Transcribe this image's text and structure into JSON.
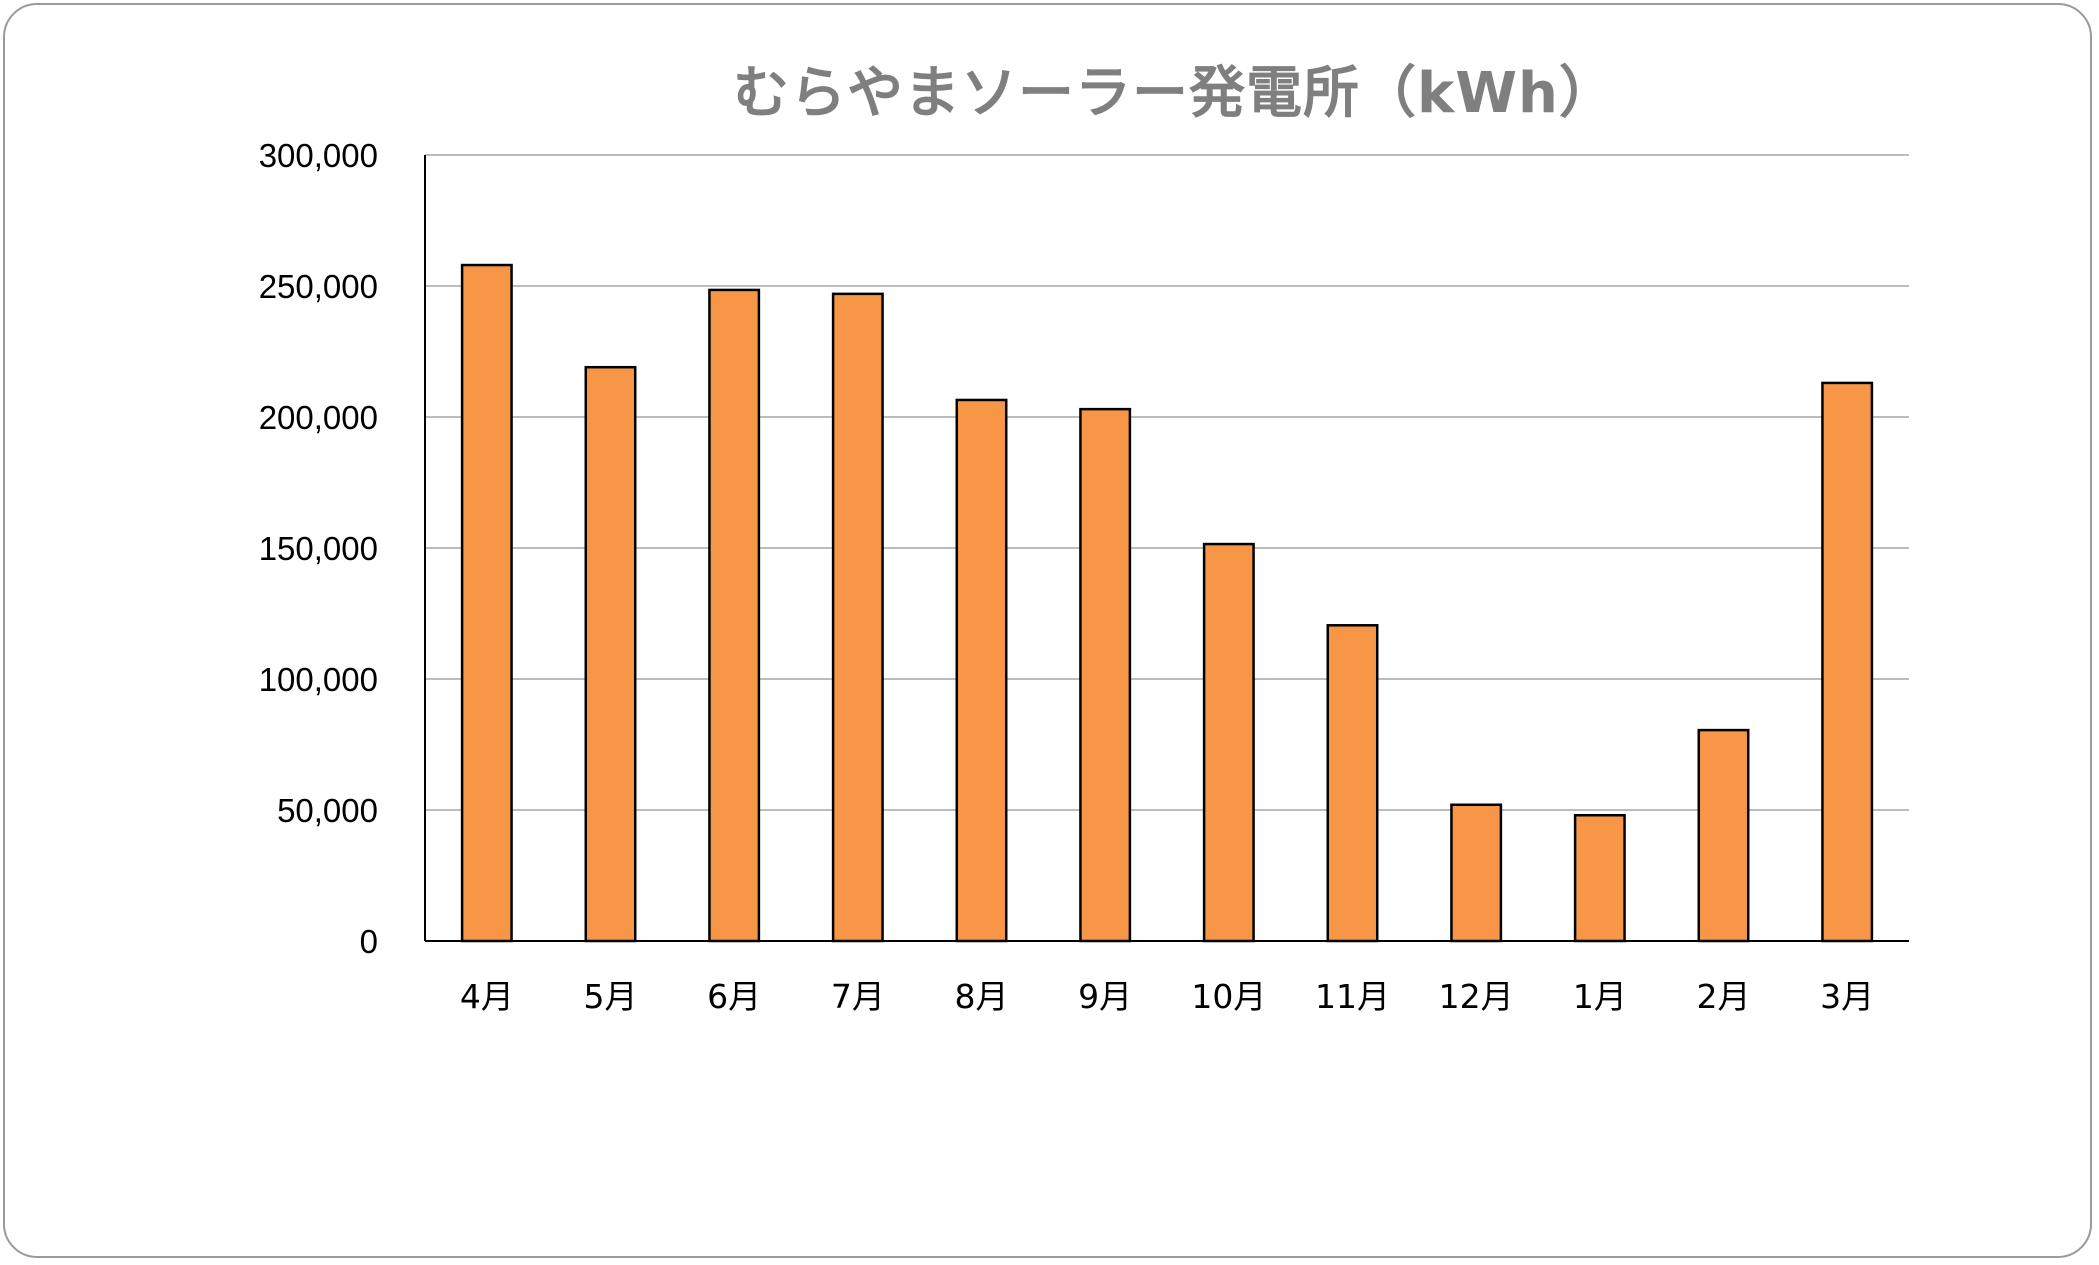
{
  "chart_data": {
    "type": "bar",
    "title": "むらやまソーラー発電所（kWh）",
    "xlabel": "",
    "ylabel": "",
    "categories": [
      "4月",
      "5月",
      "6月",
      "7月",
      "8月",
      "9月",
      "10月",
      "11月",
      "12月",
      "1月",
      "2月",
      "3月"
    ],
    "values": [
      258000,
      219000,
      248500,
      247000,
      206500,
      203000,
      151500,
      120500,
      52000,
      48000,
      80500,
      213000
    ],
    "ylim": [
      0,
      300000
    ],
    "yticks": [
      0,
      50000,
      100000,
      150000,
      200000,
      250000,
      300000
    ],
    "ytick_labels": [
      "0",
      "50,000",
      "100,000",
      "150,000",
      "200,000",
      "250,000",
      "300,000"
    ],
    "grid": true,
    "legend": "none",
    "colors": {
      "bar_fill": "#f79646",
      "bar_stroke": "#000000",
      "grid": "#a6a6a6",
      "title": "#7f7f7f"
    }
  }
}
